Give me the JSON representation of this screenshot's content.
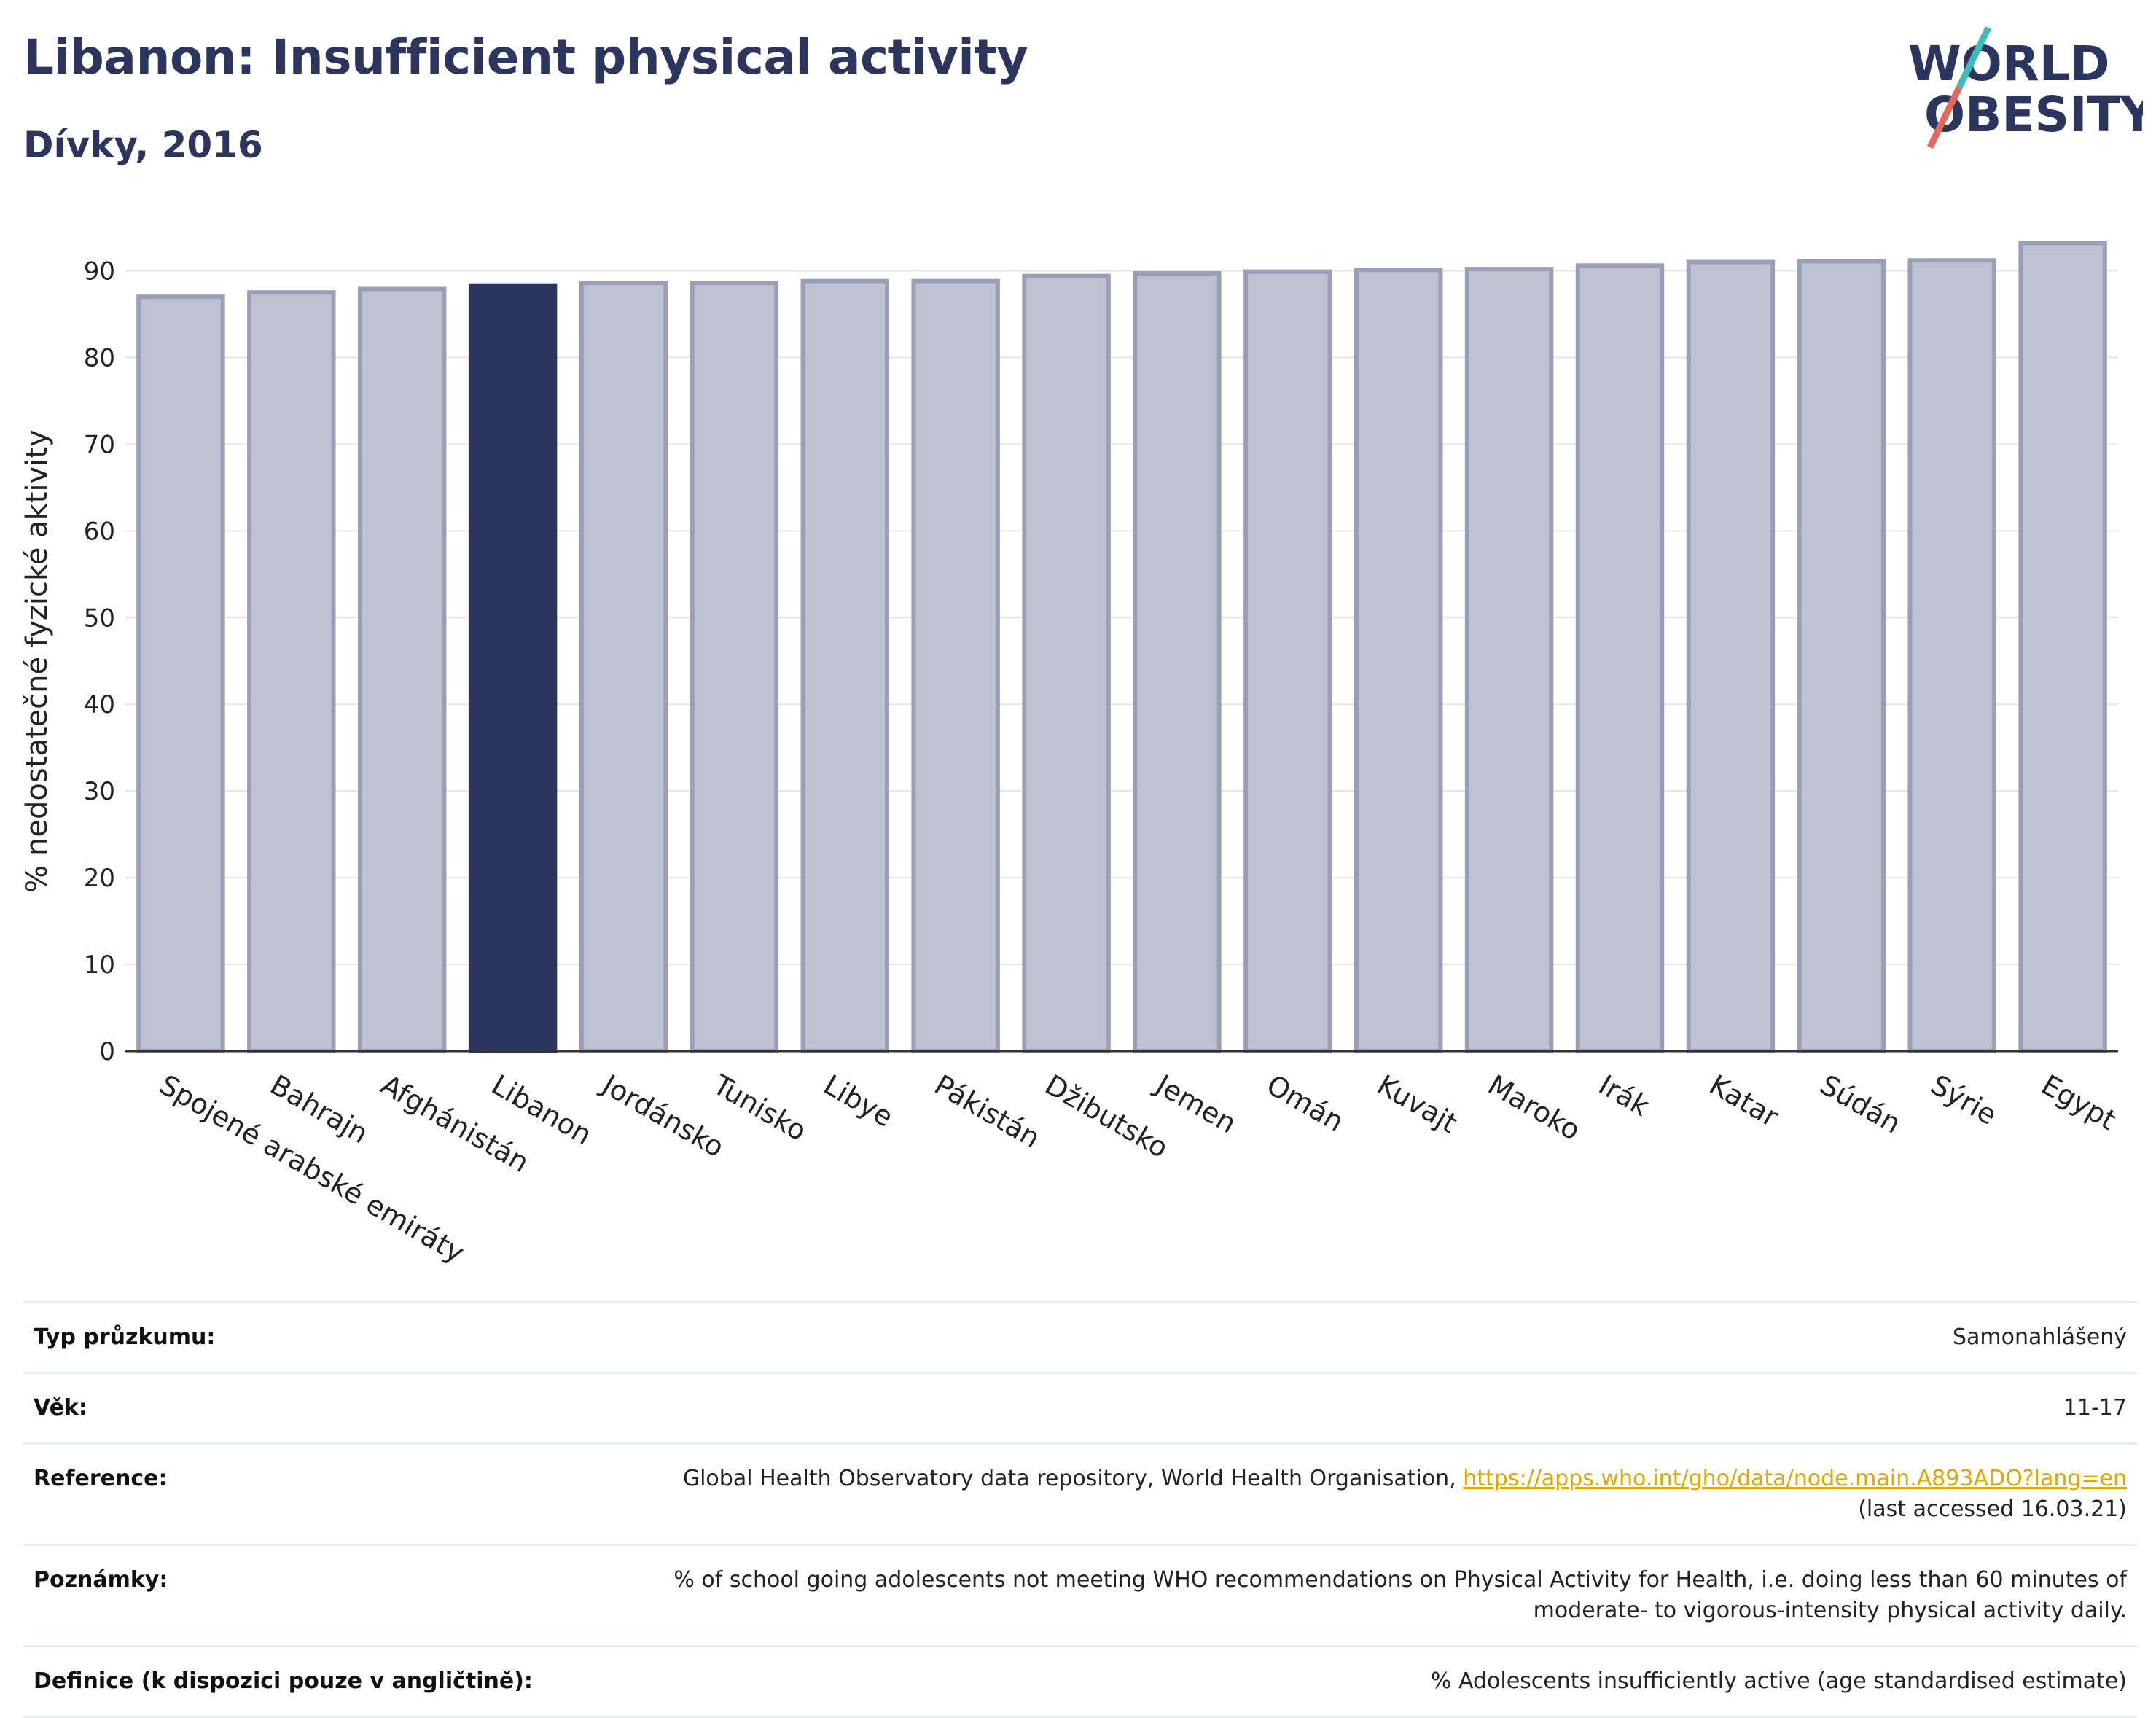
{
  "title": "Libanon: Insufficient physical activity",
  "subtitle": "Dívky, 2016",
  "logo": {
    "line1": "WORLD",
    "line2": "OBESITY",
    "brand_color": "#2b355e",
    "accent_teal": "#3fbcb8",
    "accent_coral": "#e36a5a"
  },
  "chart_data": {
    "type": "bar",
    "categories": [
      "Spojené arabské emiráty",
      "Bahrajn",
      "Afghánistán",
      "Libanon",
      "Jordánsko",
      "Tunisko",
      "Libye",
      "Pákistán",
      "Džibutsko",
      "Jemen",
      "Omán",
      "Kuvajt",
      "Maroko",
      "Irák",
      "Katar",
      "Súdán",
      "Sýrie",
      "Egypt"
    ],
    "values": [
      87.0,
      87.5,
      87.9,
      88.3,
      88.6,
      88.6,
      88.8,
      88.8,
      89.4,
      89.7,
      89.9,
      90.1,
      90.2,
      90.6,
      91.0,
      91.1,
      91.2,
      93.2
    ],
    "highlight": "Libanon",
    "ylabel": "% nedostatečné fyzické aktivity",
    "xlabel": "",
    "ylim": [
      0,
      95
    ],
    "yticks": [
      0,
      10,
      20,
      30,
      40,
      50,
      60,
      70,
      80,
      90
    ],
    "grid": true,
    "colors": {
      "bar": "#bec1cf",
      "bar_border": "#9a9fb8",
      "highlight": "#2b355e"
    }
  },
  "table": [
    {
      "label": "Typ průzkumu:",
      "value": "Samonahlášený"
    },
    {
      "label": "Věk:",
      "value": "11-17"
    },
    {
      "label": "Reference:",
      "value": "Global Health Observatory data repository, World Health Organisation, ",
      "link": "https://apps.who.int/gho/data/node.main.A893ADO?lang=en",
      "value2": "(last accessed 16.03.21)"
    },
    {
      "label": "Poznámky:",
      "value": "% of school going adolescents not meeting WHO recommendations on Physical Activity for Health, i.e. doing less than 60 minutes of",
      "value2": "moderate- to vigorous-intensity physical activity daily."
    },
    {
      "label": "Definice (k dispozici pouze v angličtině):",
      "value": "% Adolescents insufficiently active (age standardised estimate)"
    }
  ]
}
